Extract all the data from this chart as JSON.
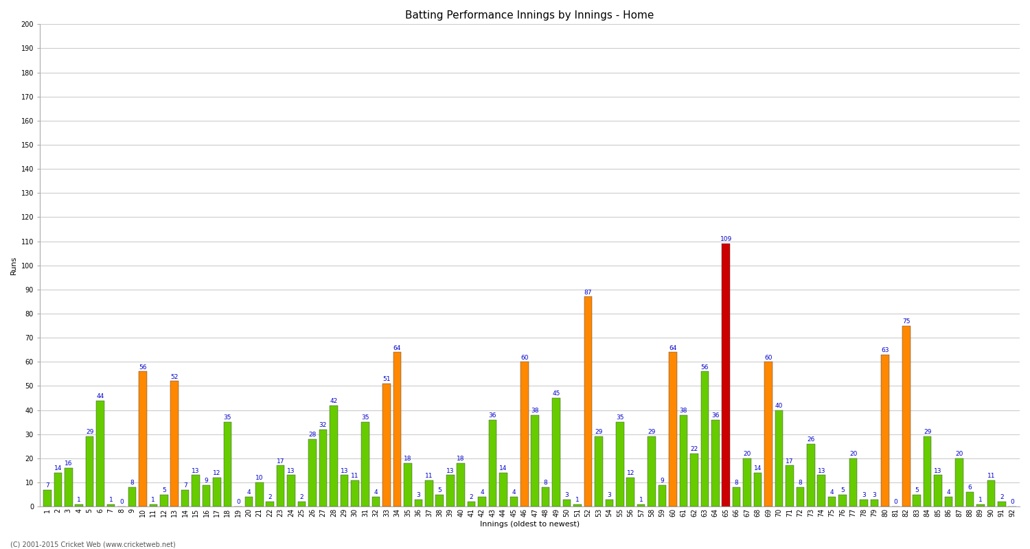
{
  "title": "Batting Performance Innings by Innings - Home",
  "xlabel": "Innings (oldest to newest)",
  "ylabel": "Runs",
  "ylim": [
    0,
    200
  ],
  "yticks": [
    0,
    10,
    20,
    30,
    40,
    50,
    60,
    70,
    80,
    90,
    100,
    110,
    120,
    130,
    140,
    150,
    160,
    170,
    180,
    190,
    200
  ],
  "background_color": "#ffffff",
  "grid_color": "#cccccc",
  "label_color": "#0000cc",
  "footer": "(C) 2001-2015 Cricket Web (www.cricketweb.net)",
  "innings": [
    {
      "n": 1,
      "score": 7,
      "color": "green"
    },
    {
      "n": 2,
      "score": 14,
      "color": "green"
    },
    {
      "n": 3,
      "score": 16,
      "color": "green"
    },
    {
      "n": 4,
      "score": 1,
      "color": "green"
    },
    {
      "n": 5,
      "score": 29,
      "color": "green"
    },
    {
      "n": 6,
      "score": 44,
      "color": "green"
    },
    {
      "n": 7,
      "score": 1,
      "color": "green"
    },
    {
      "n": 8,
      "score": 0,
      "color": "green"
    },
    {
      "n": 9,
      "score": 8,
      "color": "green"
    },
    {
      "n": 10,
      "score": 56,
      "color": "orange"
    },
    {
      "n": 11,
      "score": 1,
      "color": "green"
    },
    {
      "n": 12,
      "score": 5,
      "color": "green"
    },
    {
      "n": 13,
      "score": 52,
      "color": "orange"
    },
    {
      "n": 14,
      "score": 7,
      "color": "green"
    },
    {
      "n": 15,
      "score": 13,
      "color": "green"
    },
    {
      "n": 16,
      "score": 9,
      "color": "green"
    },
    {
      "n": 17,
      "score": 12,
      "color": "green"
    },
    {
      "n": 18,
      "score": 35,
      "color": "green"
    },
    {
      "n": 19,
      "score": 0,
      "color": "green"
    },
    {
      "n": 20,
      "score": 4,
      "color": "green"
    },
    {
      "n": 21,
      "score": 10,
      "color": "green"
    },
    {
      "n": 22,
      "score": 2,
      "color": "green"
    },
    {
      "n": 23,
      "score": 17,
      "color": "green"
    },
    {
      "n": 24,
      "score": 13,
      "color": "green"
    },
    {
      "n": 25,
      "score": 2,
      "color": "green"
    },
    {
      "n": 26,
      "score": 28,
      "color": "green"
    },
    {
      "n": 27,
      "score": 32,
      "color": "green"
    },
    {
      "n": 28,
      "score": 42,
      "color": "green"
    },
    {
      "n": 29,
      "score": 13,
      "color": "green"
    },
    {
      "n": 30,
      "score": 11,
      "color": "green"
    },
    {
      "n": 31,
      "score": 35,
      "color": "green"
    },
    {
      "n": 32,
      "score": 4,
      "color": "green"
    },
    {
      "n": 33,
      "score": 51,
      "color": "orange"
    },
    {
      "n": 34,
      "score": 64,
      "color": "orange"
    },
    {
      "n": 35,
      "score": 18,
      "color": "green"
    },
    {
      "n": 36,
      "score": 3,
      "color": "green"
    },
    {
      "n": 37,
      "score": 11,
      "color": "green"
    },
    {
      "n": 38,
      "score": 5,
      "color": "green"
    },
    {
      "n": 39,
      "score": 13,
      "color": "green"
    },
    {
      "n": 40,
      "score": 18,
      "color": "green"
    },
    {
      "n": 41,
      "score": 2,
      "color": "green"
    },
    {
      "n": 42,
      "score": 4,
      "color": "green"
    },
    {
      "n": 43,
      "score": 36,
      "color": "green"
    },
    {
      "n": 44,
      "score": 14,
      "color": "green"
    },
    {
      "n": 45,
      "score": 4,
      "color": "green"
    },
    {
      "n": 46,
      "score": 60,
      "color": "orange"
    },
    {
      "n": 47,
      "score": 38,
      "color": "green"
    },
    {
      "n": 48,
      "score": 8,
      "color": "green"
    },
    {
      "n": 49,
      "score": 45,
      "color": "green"
    },
    {
      "n": 50,
      "score": 3,
      "color": "green"
    },
    {
      "n": 51,
      "score": 1,
      "color": "green"
    },
    {
      "n": 52,
      "score": 87,
      "color": "orange"
    },
    {
      "n": 53,
      "score": 29,
      "color": "green"
    },
    {
      "n": 54,
      "score": 3,
      "color": "green"
    },
    {
      "n": 55,
      "score": 35,
      "color": "green"
    },
    {
      "n": 56,
      "score": 12,
      "color": "green"
    },
    {
      "n": 57,
      "score": 1,
      "color": "green"
    },
    {
      "n": 58,
      "score": 29,
      "color": "green"
    },
    {
      "n": 59,
      "score": 9,
      "color": "green"
    },
    {
      "n": 60,
      "score": 64,
      "color": "orange"
    },
    {
      "n": 61,
      "score": 38,
      "color": "green"
    },
    {
      "n": 62,
      "score": 22,
      "color": "green"
    },
    {
      "n": 63,
      "score": 56,
      "color": "green"
    },
    {
      "n": 64,
      "score": 36,
      "color": "green"
    },
    {
      "n": 65,
      "score": 109,
      "color": "red"
    },
    {
      "n": 66,
      "score": 8,
      "color": "green"
    },
    {
      "n": 67,
      "score": 20,
      "color": "green"
    },
    {
      "n": 68,
      "score": 14,
      "color": "green"
    },
    {
      "n": 69,
      "score": 60,
      "color": "orange"
    },
    {
      "n": 70,
      "score": 40,
      "color": "green"
    },
    {
      "n": 71,
      "score": 17,
      "color": "green"
    },
    {
      "n": 72,
      "score": 8,
      "color": "green"
    },
    {
      "n": 73,
      "score": 26,
      "color": "green"
    },
    {
      "n": 74,
      "score": 13,
      "color": "green"
    },
    {
      "n": 75,
      "score": 4,
      "color": "green"
    },
    {
      "n": 76,
      "score": 5,
      "color": "green"
    },
    {
      "n": 77,
      "score": 20,
      "color": "green"
    },
    {
      "n": 78,
      "score": 3,
      "color": "green"
    },
    {
      "n": 79,
      "score": 3,
      "color": "green"
    },
    {
      "n": 80,
      "score": 63,
      "color": "orange"
    },
    {
      "n": 81,
      "score": 0,
      "color": "green"
    },
    {
      "n": 82,
      "score": 75,
      "color": "orange"
    },
    {
      "n": 83,
      "score": 5,
      "color": "green"
    },
    {
      "n": 84,
      "score": 29,
      "color": "green"
    },
    {
      "n": 85,
      "score": 13,
      "color": "green"
    },
    {
      "n": 86,
      "score": 4,
      "color": "green"
    },
    {
      "n": 87,
      "score": 20,
      "color": "green"
    },
    {
      "n": 88,
      "score": 6,
      "color": "green"
    },
    {
      "n": 89,
      "score": 1,
      "color": "green"
    },
    {
      "n": 90,
      "score": 11,
      "color": "green"
    },
    {
      "n": 91,
      "score": 2,
      "color": "green"
    },
    {
      "n": 92,
      "score": 0,
      "color": "green"
    }
  ],
  "color_map": {
    "green": "#66cc00",
    "orange": "#ff8800",
    "red": "#cc0000"
  },
  "title_fontsize": 11,
  "label_fontsize": 6.5,
  "tick_fontsize": 7,
  "ylabel_fontsize": 8,
  "bar_width": 0.75
}
